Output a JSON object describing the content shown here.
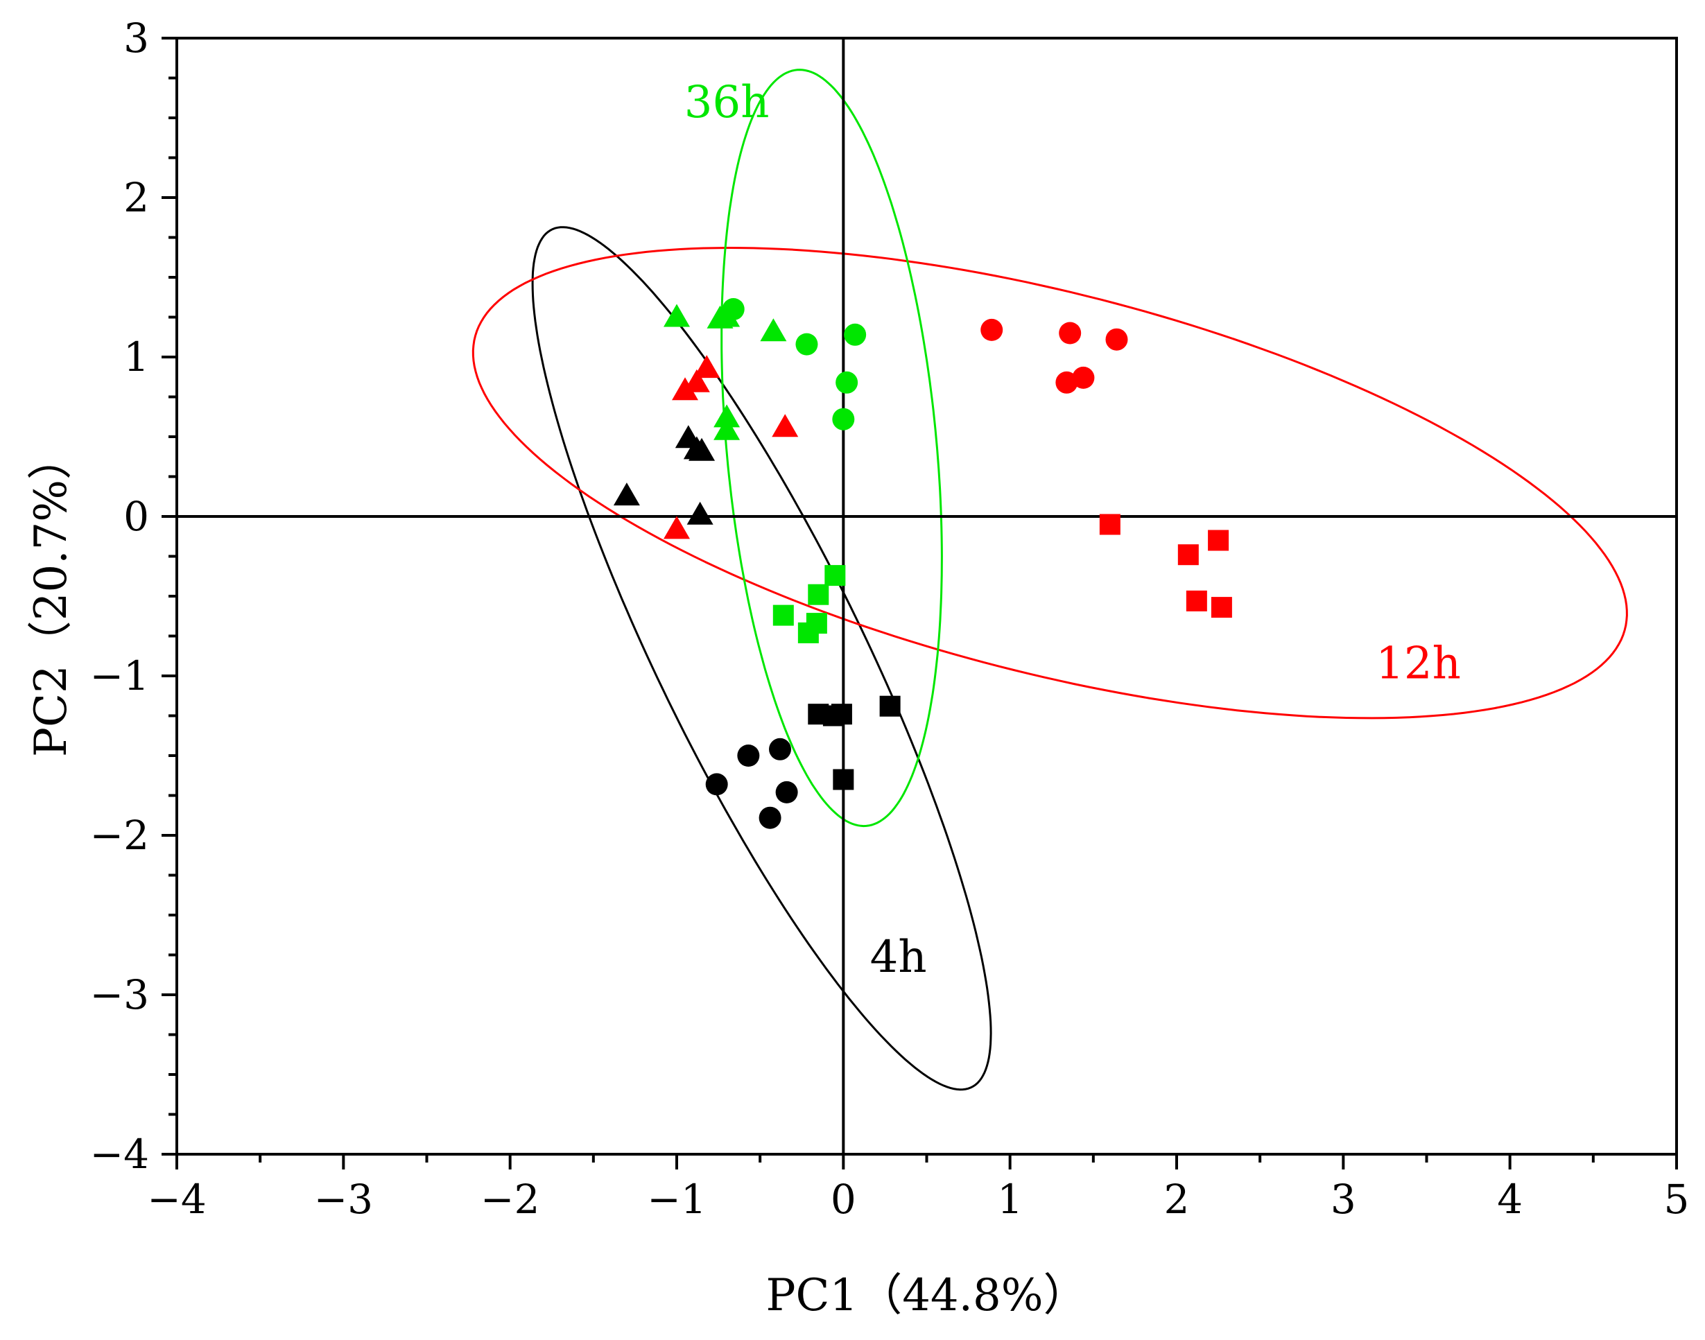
{
  "chart_data": {
    "type": "scatter",
    "title": "",
    "xlabel": "PC1（44.8%）",
    "ylabel": "PC2（20.7%）",
    "xlim": [
      -4,
      5
    ],
    "ylim": [
      -4,
      3
    ],
    "xticks": [
      -4,
      -3,
      -2,
      -1,
      0,
      1,
      2,
      3,
      4,
      5
    ],
    "yticks": [
      -4,
      -3,
      -2,
      -1,
      0,
      1,
      2,
      3
    ],
    "xtick_labels": [
      "−4",
      "−3",
      "−2",
      "−1",
      "0",
      "1",
      "2",
      "3",
      "4",
      "5"
    ],
    "ytick_labels": [
      "−4",
      "−3",
      "−2",
      "−1",
      "0",
      "1",
      "2",
      "3"
    ],
    "colors": {
      "4h": "#000000",
      "12h": "#ff0000",
      "36h": "#00e600"
    },
    "series": [
      {
        "name": "4h-triangle",
        "group": "4h",
        "marker": "triangle",
        "points": [
          [
            -1.3,
            0.13
          ],
          [
            -0.93,
            0.49
          ],
          [
            -0.88,
            0.42
          ],
          [
            -0.85,
            0.41
          ],
          [
            -0.86,
            0.01
          ]
        ]
      },
      {
        "name": "4h-circle",
        "group": "4h",
        "marker": "circle",
        "points": [
          [
            -0.76,
            -1.68
          ],
          [
            -0.57,
            -1.5
          ],
          [
            -0.38,
            -1.46
          ],
          [
            -0.34,
            -1.73
          ],
          [
            -0.44,
            -1.89
          ]
        ]
      },
      {
        "name": "4h-square",
        "group": "4h",
        "marker": "square",
        "points": [
          [
            -0.15,
            -1.24
          ],
          [
            -0.06,
            -1.25
          ],
          [
            -0.01,
            -1.24
          ],
          [
            0.28,
            -1.19
          ],
          [
            0.0,
            -1.65
          ]
        ]
      },
      {
        "name": "12h-triangle",
        "group": "12h",
        "marker": "triangle",
        "points": [
          [
            -0.82,
            0.93
          ],
          [
            -0.88,
            0.84
          ],
          [
            -0.95,
            0.79
          ],
          [
            -0.35,
            0.56
          ],
          [
            -1.0,
            -0.08
          ]
        ]
      },
      {
        "name": "12h-circle",
        "group": "12h",
        "marker": "circle",
        "points": [
          [
            0.89,
            1.17
          ],
          [
            1.36,
            1.15
          ],
          [
            1.64,
            1.11
          ],
          [
            1.34,
            0.84
          ],
          [
            1.44,
            0.87
          ]
        ]
      },
      {
        "name": "12h-square",
        "group": "12h",
        "marker": "square",
        "points": [
          [
            1.6,
            -0.05
          ],
          [
            2.07,
            -0.24
          ],
          [
            2.25,
            -0.15
          ],
          [
            2.12,
            -0.53
          ],
          [
            2.27,
            -0.57
          ]
        ]
      },
      {
        "name": "36h-triangle",
        "group": "36h",
        "marker": "triangle",
        "points": [
          [
            -1.0,
            1.25
          ],
          [
            -0.74,
            1.24
          ],
          [
            -0.7,
            1.25
          ],
          [
            -0.42,
            1.16
          ],
          [
            -0.7,
            0.62
          ],
          [
            -0.7,
            0.54
          ]
        ]
      },
      {
        "name": "36h-circle",
        "group": "36h",
        "marker": "circle",
        "points": [
          [
            -0.66,
            1.3
          ],
          [
            -0.22,
            1.08
          ],
          [
            0.07,
            1.14
          ],
          [
            0.02,
            0.84
          ],
          [
            0.0,
            0.61
          ]
        ]
      },
      {
        "name": "36h-square",
        "group": "36h",
        "marker": "square",
        "points": [
          [
            -0.05,
            -0.37
          ],
          [
            -0.15,
            -0.49
          ],
          [
            -0.36,
            -0.62
          ],
          [
            -0.16,
            -0.67
          ],
          [
            -0.21,
            -0.73
          ]
        ]
      }
    ],
    "confidence_ellipses": [
      {
        "group": "4h",
        "center": [
          -0.49,
          -0.89
        ],
        "semi_axes": [
          2.97,
          0.62
        ],
        "angle_deg": -65.0
      },
      {
        "group": "12h",
        "center": [
          1.24,
          0.21
        ],
        "semi_axes": [
          3.57,
          1.19
        ],
        "angle_deg": -15.0
      },
      {
        "group": "36h",
        "center": [
          -0.07,
          0.43
        ],
        "semi_axes": [
          2.38,
          0.63
        ],
        "angle_deg": -85.0
      }
    ],
    "annotations": [
      {
        "text": "36h",
        "group": "36h",
        "x": -0.7,
        "y": 2.6
      },
      {
        "text": "12h",
        "group": "12h",
        "x": 3.45,
        "y": -0.92
      },
      {
        "text": "4h",
        "group": "4h",
        "x": 0.33,
        "y": -2.76
      }
    ]
  }
}
